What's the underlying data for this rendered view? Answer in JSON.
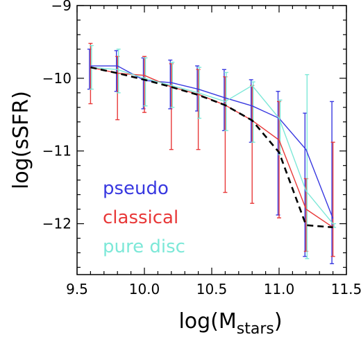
{
  "chart_data": {
    "type": "line",
    "xlabel": "log(M",
    "xlabel_sub": "stars",
    "xlabel_end": ")",
    "ylabel": "log(sSFR)",
    "xlim": [
      9.5,
      11.5
    ],
    "ylim": [
      -12.7,
      -9.0
    ],
    "x_ticks": [
      9.5,
      10.0,
      10.5,
      11.0,
      11.5
    ],
    "x_tick_labels": [
      "9.5",
      "10.0",
      "10.5",
      "11.0",
      "11.5"
    ],
    "y_ticks": [
      -9,
      -10,
      -11,
      -12
    ],
    "y_tick_labels": [
      "−9",
      "−10",
      "−11",
      "−12"
    ],
    "x": [
      9.6,
      9.8,
      10.0,
      10.2,
      10.4,
      10.6,
      10.8,
      11.0,
      11.2,
      11.4
    ],
    "legend_position": "bottom-left",
    "series": [
      {
        "name": "pseudo",
        "color": "#3838e0",
        "style": "solid",
        "values": [
          -9.83,
          -9.83,
          -10.03,
          -10.06,
          -10.15,
          -10.27,
          -10.38,
          -10.55,
          -10.98,
          -11.93
        ],
        "err_high": [
          -9.6,
          -9.62,
          -9.72,
          -9.75,
          -9.83,
          -9.88,
          -10.02,
          -10.18,
          -10.48,
          -10.32
        ],
        "err_low": [
          -10.15,
          -10.18,
          -10.42,
          -10.42,
          -10.45,
          -10.72,
          -10.88,
          -11.88,
          -12.45,
          -12.55
        ]
      },
      {
        "name": "classical",
        "color": "#e83838",
        "style": "solid",
        "values": [
          -9.85,
          -9.93,
          -9.96,
          -10.12,
          -10.22,
          -10.37,
          -10.58,
          -10.85,
          -11.8,
          -12.05
        ],
        "err_high": [
          -9.52,
          -9.7,
          -9.7,
          -9.8,
          -9.88,
          -9.98,
          -10.1,
          -10.32,
          -11.38,
          -10.88
        ],
        "err_low": [
          -10.35,
          -10.57,
          -10.47,
          -10.98,
          -10.98,
          -11.57,
          -11.72,
          -11.92,
          -12.38,
          -12.45
        ]
      },
      {
        "name": "pure disc",
        "color": "#7de8d8",
        "style": "solid",
        "values": [
          -9.85,
          -9.88,
          -10.0,
          -10.1,
          -10.2,
          -10.32,
          -10.1,
          -10.55,
          -11.55,
          -12.0
        ],
        "err_high": [
          -9.55,
          -9.6,
          -9.72,
          -9.78,
          -9.85,
          -9.92,
          -10.05,
          -10.3,
          -9.95,
          -12.0
        ],
        "err_low": [
          -10.15,
          -10.2,
          -10.38,
          -10.4,
          -10.55,
          -10.72,
          -10.88,
          -11.05,
          -12.48,
          -12.05
        ]
      },
      {
        "name": "",
        "color": "#000000",
        "style": "dashed",
        "values": [
          -9.85,
          -9.93,
          -10.02,
          -10.12,
          -10.23,
          -10.37,
          -10.58,
          -11.02,
          -12.02,
          -12.05
        ]
      }
    ]
  }
}
